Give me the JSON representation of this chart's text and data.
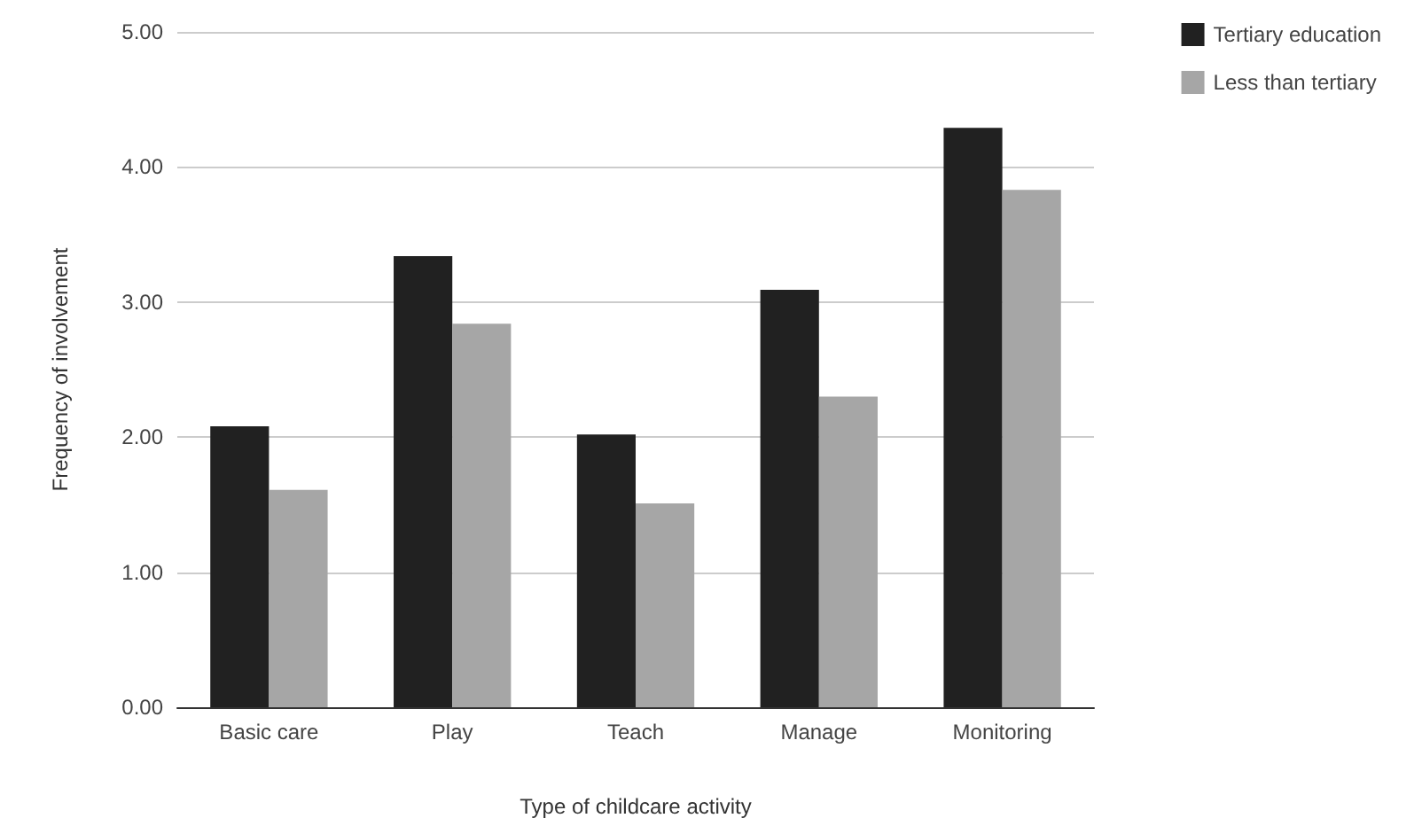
{
  "chart_data": {
    "type": "bar",
    "xlabel": "Type of childcare activity",
    "ylabel": "Frequency of involvement",
    "categories": [
      "Basic care",
      "Play",
      "Teach",
      "Manage",
      "Monitoring"
    ],
    "series": [
      {
        "name": "Tertiary education",
        "color": "#212121",
        "values": [
          2.08,
          3.34,
          2.02,
          3.09,
          4.29
        ]
      },
      {
        "name": "Less than tertiary",
        "color": "#a6a6a6",
        "values": [
          1.61,
          2.84,
          1.51,
          2.3,
          3.83
        ]
      }
    ],
    "ylim": [
      0,
      5
    ],
    "yticks": [
      {
        "value": 0,
        "label": "0.00"
      },
      {
        "value": 1,
        "label": "1.00"
      },
      {
        "value": 2,
        "label": "2.00"
      },
      {
        "value": 3,
        "label": "3.00"
      },
      {
        "value": 4,
        "label": "4.00"
      },
      {
        "value": 5,
        "label": "5.00"
      }
    ],
    "grid": "y",
    "legend": "top right"
  }
}
